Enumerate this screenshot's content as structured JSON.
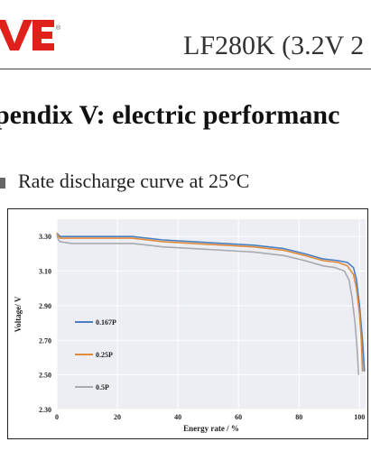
{
  "header": {
    "logo_text": "VE",
    "doc_title": "LF280K (3.2V 2"
  },
  "section_title": "pendix V: electric performanc",
  "subsection_title": "Rate discharge curve at 25°C",
  "colors": {
    "logo_red": "#e0201a",
    "plot_bg": "#eceef3",
    "grid": "#ffffff"
  },
  "chart_data": {
    "type": "line",
    "title": "Rate discharge curve at 25°C",
    "xlabel": "Energy rate / %",
    "ylabel": "Voltage/ V",
    "xlim": [
      0,
      102
    ],
    "ylim": [
      2.3,
      3.4
    ],
    "xticks": [
      "0",
      "20",
      "40",
      "60",
      "80",
      "100"
    ],
    "yticks": [
      "2.30",
      "2.50",
      "2.70",
      "2.90",
      "3.10",
      "3.30"
    ],
    "legend_position": "left-middle",
    "grid": true,
    "series": [
      {
        "name": "0.167P",
        "color": "#4a7fc0",
        "points": [
          [
            0,
            3.32
          ],
          [
            0.5,
            3.31
          ],
          [
            1,
            3.3
          ],
          [
            5,
            3.3
          ],
          [
            15,
            3.3
          ],
          [
            25,
            3.3
          ],
          [
            35,
            3.28
          ],
          [
            45,
            3.27
          ],
          [
            55,
            3.26
          ],
          [
            65,
            3.25
          ],
          [
            75,
            3.23
          ],
          [
            82,
            3.2
          ],
          [
            88,
            3.17
          ],
          [
            93,
            3.16
          ],
          [
            96,
            3.15
          ],
          [
            98,
            3.12
          ],
          [
            99,
            3.05
          ],
          [
            100,
            2.9
          ],
          [
            101,
            2.7
          ],
          [
            101.6,
            2.52
          ]
        ]
      },
      {
        "name": "0.25P",
        "color": "#e08a3a",
        "points": [
          [
            0,
            3.32
          ],
          [
            0.5,
            3.3
          ],
          [
            1,
            3.29
          ],
          [
            5,
            3.29
          ],
          [
            15,
            3.29
          ],
          [
            25,
            3.29
          ],
          [
            35,
            3.27
          ],
          [
            45,
            3.26
          ],
          [
            55,
            3.25
          ],
          [
            65,
            3.24
          ],
          [
            75,
            3.22
          ],
          [
            82,
            3.19
          ],
          [
            88,
            3.16
          ],
          [
            93,
            3.15
          ],
          [
            96,
            3.13
          ],
          [
            98,
            3.08
          ],
          [
            99,
            3.0
          ],
          [
            100,
            2.85
          ],
          [
            100.6,
            2.7
          ],
          [
            101,
            2.52
          ]
        ]
      },
      {
        "name": "0.5P",
        "color": "#a9a9b0",
        "points": [
          [
            0,
            3.31
          ],
          [
            0.5,
            3.28
          ],
          [
            1,
            3.27
          ],
          [
            5,
            3.26
          ],
          [
            15,
            3.26
          ],
          [
            25,
            3.26
          ],
          [
            35,
            3.24
          ],
          [
            45,
            3.23
          ],
          [
            55,
            3.22
          ],
          [
            65,
            3.21
          ],
          [
            75,
            3.19
          ],
          [
            82,
            3.16
          ],
          [
            88,
            3.13
          ],
          [
            92,
            3.12
          ],
          [
            95,
            3.1
          ],
          [
            96.5,
            3.05
          ],
          [
            97.5,
            2.95
          ],
          [
            98.5,
            2.8
          ],
          [
            99.2,
            2.65
          ],
          [
            99.7,
            2.5
          ]
        ]
      }
    ]
  }
}
